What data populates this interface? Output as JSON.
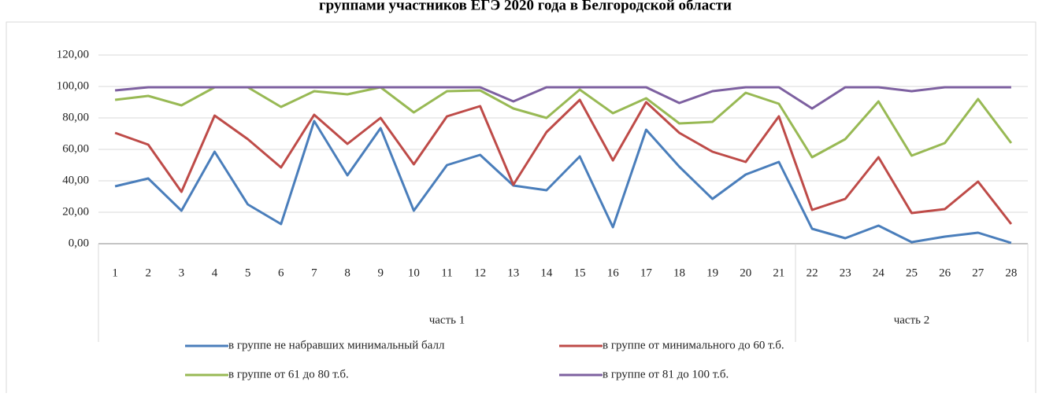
{
  "chart_data": {
    "type": "line",
    "title": "группами участников ЕГЭ 2020 года в Белгородской области",
    "categories": [
      "1",
      "2",
      "3",
      "4",
      "5",
      "6",
      "7",
      "8",
      "9",
      "10",
      "11",
      "12",
      "13",
      "14",
      "15",
      "16",
      "17",
      "18",
      "19",
      "20",
      "21",
      "22",
      "23",
      "24",
      "25",
      "26",
      "27",
      "28"
    ],
    "groups": [
      {
        "label": "часть 1",
        "count": 21
      },
      {
        "label": "часть 2",
        "count": 7
      }
    ],
    "ylim": [
      0,
      120
    ],
    "yticks": [
      {
        "value": 0,
        "label": "0,00"
      },
      {
        "value": 20,
        "label": "20,00"
      },
      {
        "value": 40,
        "label": "40,00"
      },
      {
        "value": 60,
        "label": "60,00"
      },
      {
        "value": 80,
        "label": "80,00"
      },
      {
        "value": 100,
        "label": "100,00"
      },
      {
        "value": 120,
        "label": "120,00"
      }
    ],
    "grid": true,
    "legend": "bottom",
    "series": [
      {
        "name": "в группе не набравших минимальный балл",
        "color": "#4a7ebb",
        "values": [
          36.5,
          41.5,
          21,
          58.5,
          25,
          12.5,
          78,
          43.5,
          73.5,
          21,
          50,
          56.5,
          37,
          34,
          55.5,
          10.5,
          72.5,
          49,
          28.5,
          44,
          52,
          9.5,
          3.5,
          11.5,
          1,
          4.5,
          7,
          0.5
        ]
      },
      {
        "name": "в группе от минимального до 60 т.б.",
        "color": "#be4b48",
        "values": [
          70.5,
          63,
          33,
          81.5,
          66.5,
          48.5,
          82,
          63.5,
          80,
          50.5,
          81,
          87.5,
          37.5,
          71,
          91.5,
          53,
          90,
          70.5,
          58.5,
          52,
          81,
          21.5,
          28.5,
          55,
          19.5,
          22,
          39.5,
          12.5
        ]
      },
      {
        "name": "в группе от 61 до 80 т.б.",
        "color": "#98b954",
        "values": [
          91.5,
          94,
          88,
          99.5,
          99.5,
          87,
          97,
          95,
          99.5,
          83.5,
          97,
          97.5,
          86,
          80,
          98,
          83,
          92.5,
          76.5,
          77.5,
          96,
          89,
          55,
          66.5,
          90.5,
          56,
          64,
          92,
          64
        ]
      },
      {
        "name": "в группе от 81 до 100 т.б.",
        "color": "#7d60a0",
        "values": [
          97.5,
          99.5,
          99.5,
          99.5,
          99.5,
          99.5,
          99.5,
          99.5,
          99.5,
          99.5,
          99.5,
          99.5,
          90.5,
          99.5,
          99.5,
          99.5,
          99.5,
          89.5,
          97,
          99.5,
          99.5,
          86,
          99.5,
          99.5,
          97,
          99.5,
          99.5,
          99.5
        ]
      }
    ]
  }
}
